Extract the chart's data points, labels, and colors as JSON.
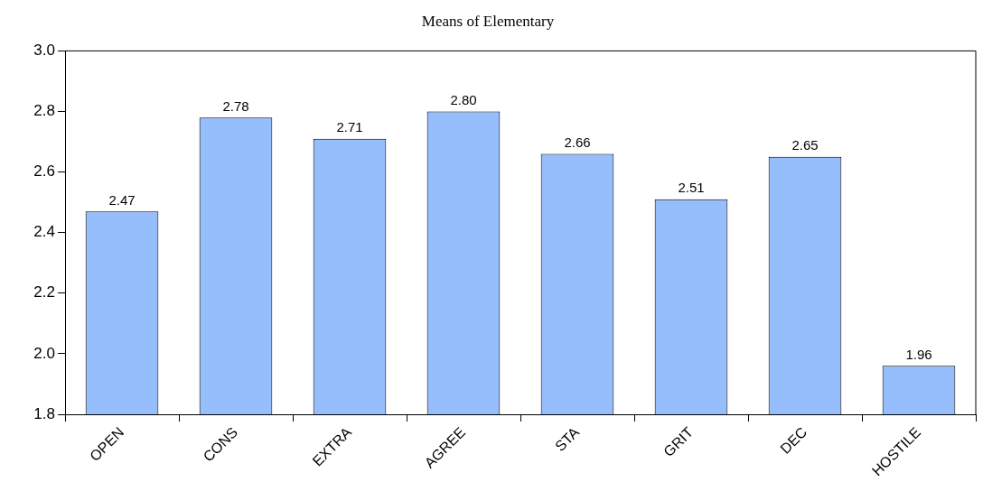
{
  "chart_data": {
    "type": "bar",
    "title": "Means of Elementary",
    "categories": [
      "OPEN",
      "CONS",
      "EXTRA",
      "AGREE",
      "STA",
      "GRIT",
      "DEC",
      "HOSTILE"
    ],
    "values": [
      2.47,
      2.78,
      2.71,
      2.8,
      2.66,
      2.51,
      2.65,
      1.96
    ],
    "value_labels": [
      "2.47",
      "2.78",
      "2.71",
      "2.80",
      "2.66",
      "2.51",
      "2.65",
      "1.96"
    ],
    "color": "#96bdfc",
    "ylim": [
      1.8,
      3.0
    ],
    "yticks": [
      {
        "value": 1.8,
        "label": "1.8"
      },
      {
        "value": 2.0,
        "label": "2.0"
      },
      {
        "value": 2.2,
        "label": "2.2"
      },
      {
        "value": 2.4,
        "label": "2.4"
      },
      {
        "value": 2.6,
        "label": "2.6"
      },
      {
        "value": 2.8,
        "label": "2.8"
      },
      {
        "value": 3.0,
        "label": "3.0"
      }
    ],
    "grid": false,
    "legend": false
  }
}
